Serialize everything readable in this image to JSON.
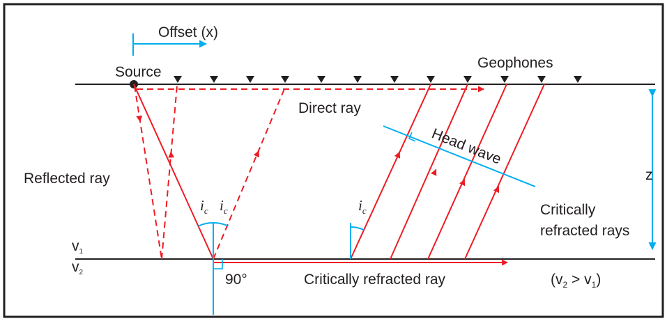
{
  "labels": {
    "offset": "Offset (x)",
    "source": "Source",
    "geophones": "Geophones",
    "direct_ray": "Direct ray",
    "head_wave": "Head wave",
    "reflected_ray": "Reflected ray",
    "z": "z",
    "critically_refracted_rays_line1": "Critically",
    "critically_refracted_rays_line2": "refracted rays",
    "critically_refracted_ray": "Critically refracted ray",
    "v2_gt_v1_open": "(v",
    "v2_gt_v1_sub2": "2",
    "v2_gt_v1_mid": " > v",
    "v2_gt_v1_sub1": "1",
    "v2_gt_v1_close": ")",
    "v": "v",
    "v1_sub": "1",
    "v2_sub": "2",
    "angle_i": "i",
    "angle_c": "c",
    "right_angle": "90°"
  },
  "colors": {
    "ray": "#ed1c24",
    "guide": "#00aeef",
    "line": "#231f20"
  }
}
